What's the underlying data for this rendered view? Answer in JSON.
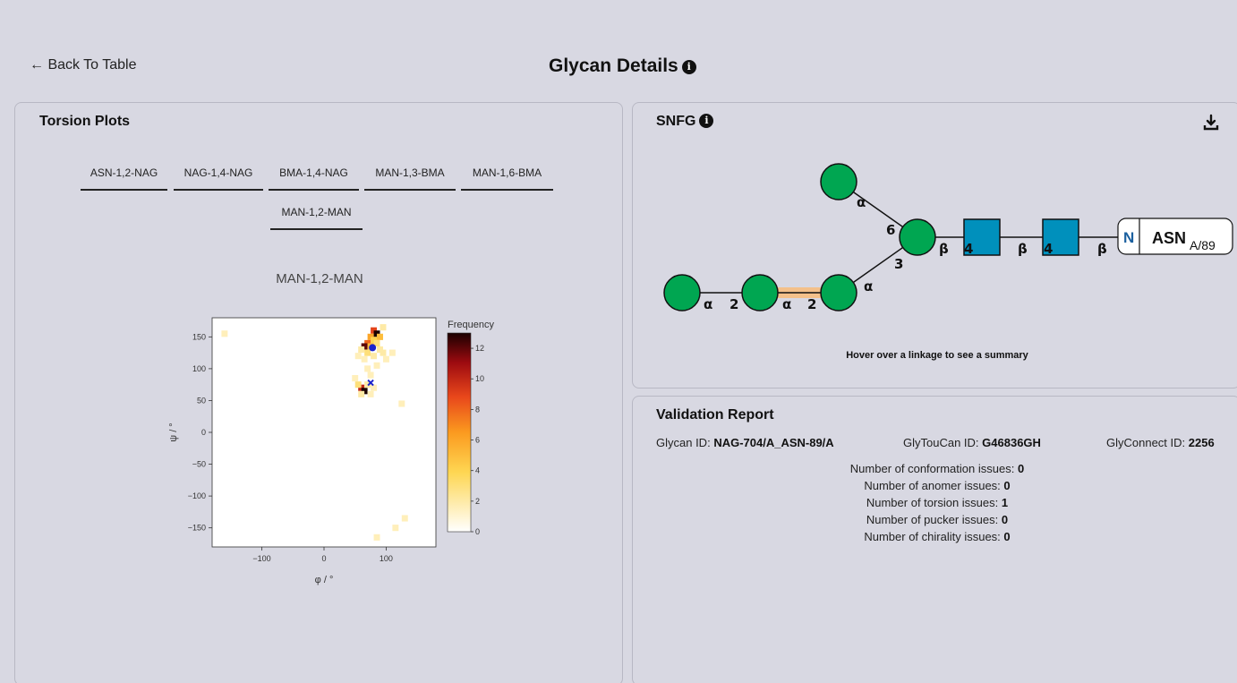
{
  "header": {
    "back_label": "← Back To Table",
    "title": "Glycan Details"
  },
  "torsion": {
    "title": "Torsion Plots",
    "tabs": [
      {
        "label": "ASN-1,2-NAG"
      },
      {
        "label": "NAG-1,4-NAG"
      },
      {
        "label": "BMA-1,4-NAG"
      },
      {
        "label": "MAN-1,3-BMA"
      },
      {
        "label": "MAN-1,6-BMA"
      },
      {
        "label": "MAN-1,2-MAN"
      }
    ],
    "active_tab": "MAN-1,2-MAN"
  },
  "chart_data": {
    "type": "heatmap",
    "title": "MAN-1,2-MAN",
    "xlabel": "φ / °",
    "ylabel": "ψ / °",
    "xlim": [
      -180,
      180
    ],
    "ylim": [
      -180,
      180
    ],
    "x_ticks": [
      -100,
      0,
      100
    ],
    "y_ticks": [
      150,
      100,
      50,
      0,
      -50,
      -100,
      -150
    ],
    "colorbar": {
      "label": "Frequency",
      "ticks": [
        12,
        10,
        8,
        6,
        4,
        2,
        0
      ],
      "min": 0,
      "max": 13
    },
    "cells": [
      [
        80,
        160,
        9
      ],
      [
        85,
        155,
        13
      ],
      [
        75,
        150,
        6
      ],
      [
        90,
        150,
        5
      ],
      [
        80,
        145,
        4
      ],
      [
        70,
        140,
        8
      ],
      [
        65,
        135,
        12
      ],
      [
        75,
        135,
        5
      ],
      [
        85,
        140,
        3
      ],
      [
        90,
        130,
        2
      ],
      [
        70,
        125,
        3
      ],
      [
        80,
        120,
        2
      ],
      [
        95,
        125,
        2
      ],
      [
        60,
        130,
        2
      ],
      [
        55,
        120,
        1
      ],
      [
        100,
        115,
        1
      ],
      [
        65,
        115,
        1
      ],
      [
        85,
        105,
        1
      ],
      [
        70,
        100,
        1
      ],
      [
        75,
        90,
        1
      ],
      [
        60,
        70,
        10
      ],
      [
        65,
        65,
        13
      ],
      [
        55,
        75,
        3
      ],
      [
        70,
        75,
        2
      ],
      [
        60,
        60,
        2
      ],
      [
        75,
        60,
        1
      ],
      [
        80,
        70,
        1
      ],
      [
        50,
        85,
        1
      ],
      [
        110,
        125,
        1
      ],
      [
        95,
        165,
        2
      ],
      [
        -160,
        155,
        1
      ],
      [
        125,
        45,
        1
      ],
      [
        130,
        -135,
        1
      ],
      [
        85,
        -165,
        1
      ],
      [
        115,
        -150,
        1
      ]
    ],
    "markers": [
      {
        "kind": "circle",
        "x": 78,
        "y": 133,
        "color": "#1a22cc"
      },
      {
        "kind": "cross",
        "x": 75,
        "y": 78,
        "color": "#1a22cc"
      }
    ]
  },
  "snfg": {
    "title": "SNFG",
    "hover_hint": "Hover over a linkage to see a summary",
    "residue_label": "ASN",
    "residue_subscript": "A/89",
    "n_label": "N",
    "linkage_labels": {
      "a6": "α",
      "n6": "6",
      "b1": "β",
      "n4a": "4",
      "b2": "β",
      "n4b": "4",
      "b3": "β",
      "n3": "3",
      "a3": "α",
      "a_left": "α",
      "n2a": "2",
      "a_mid": "α",
      "n2b": "2"
    },
    "colors": {
      "mannose": "#00a651",
      "glcnac": "#0090bc",
      "highlight": "#f4c08a"
    }
  },
  "validation": {
    "title": "Validation Report",
    "glycan_id_label": "Glycan ID:",
    "glycan_id": "NAG-704/A_ASN-89/A",
    "glytoucan_label": "GlyTouCan ID:",
    "glytoucan_id": "G46836GH",
    "glyconnect_label": "GlyConnect ID:",
    "glyconnect_id": "2256",
    "issues": [
      {
        "label": "Number of conformation issues:",
        "value": "0"
      },
      {
        "label": "Number of anomer issues:",
        "value": "0"
      },
      {
        "label": "Number of torsion issues:",
        "value": "1"
      },
      {
        "label": "Number of pucker issues:",
        "value": "0"
      },
      {
        "label": "Number of chirality issues:",
        "value": "0"
      }
    ]
  }
}
